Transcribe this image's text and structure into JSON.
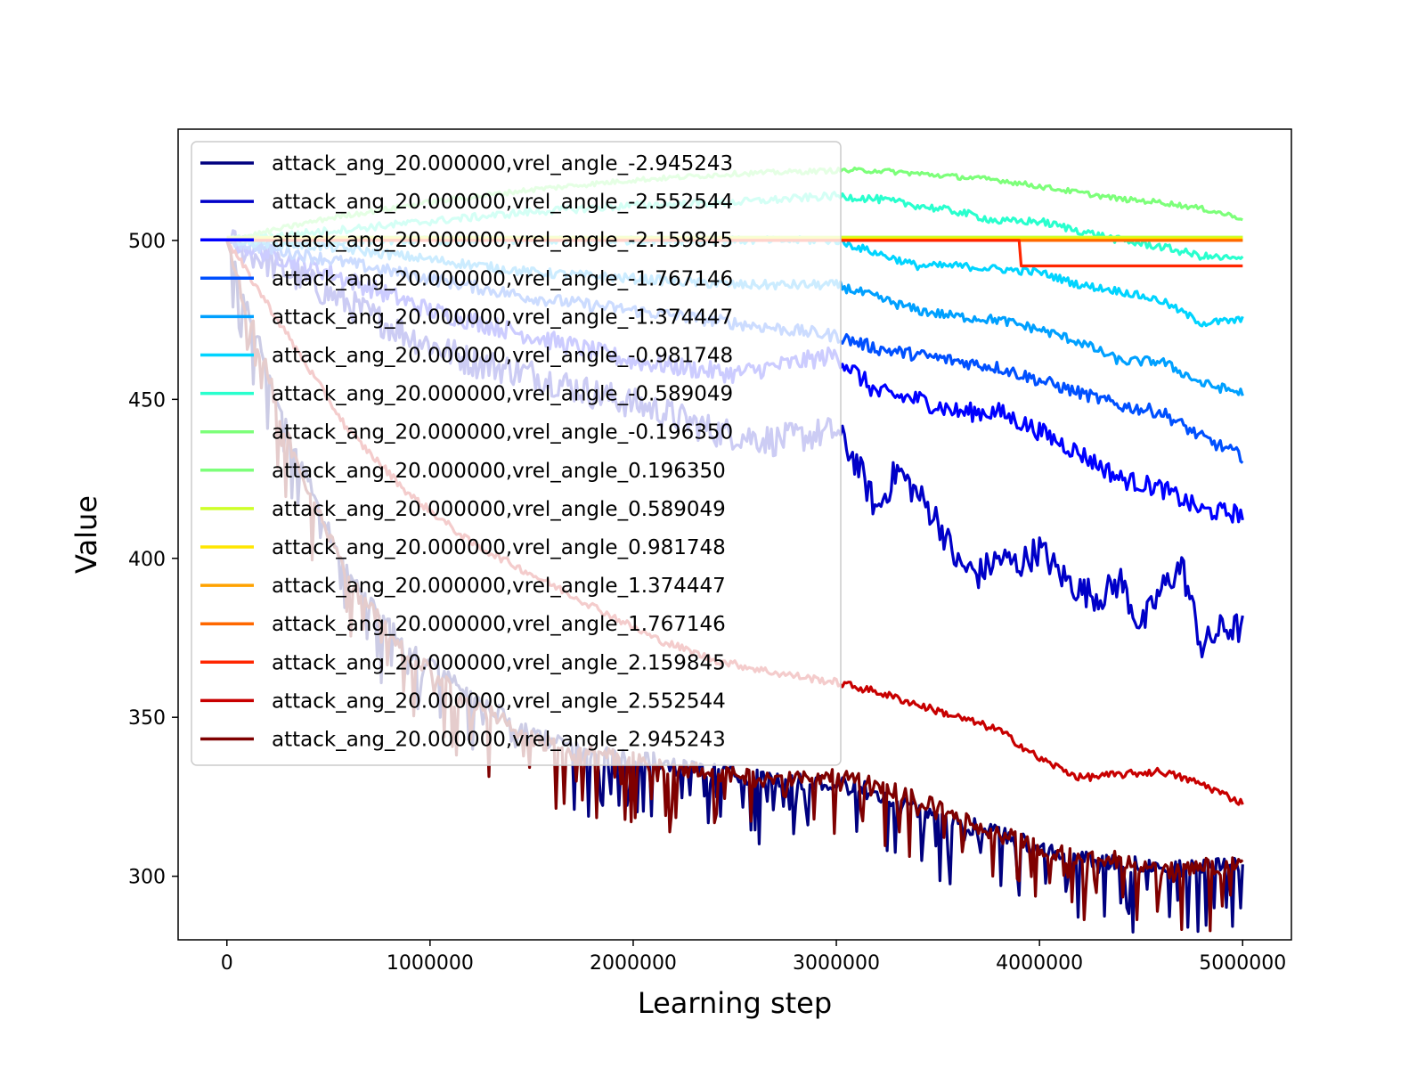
{
  "chart_data": {
    "type": "line",
    "title": "",
    "xlabel": "Learning step",
    "ylabel": "Value",
    "xlim": [
      -240000,
      5240000
    ],
    "ylim": [
      280,
      535
    ],
    "xticks": [
      0,
      1000000,
      2000000,
      3000000,
      4000000,
      5000000
    ],
    "xtick_labels": [
      "0",
      "1000000",
      "2000000",
      "3000000",
      "4000000",
      "5000000"
    ],
    "yticks": [
      300,
      350,
      400,
      450,
      500
    ],
    "ytick_labels": [
      "300",
      "350",
      "400",
      "450",
      "500"
    ],
    "grid": false,
    "legend_position": "upper-left",
    "series": [
      {
        "name": "attack_ang_20.000000,vrel_angle_-2.945243",
        "color": "#00007f",
        "x": [
          0,
          300000,
          600000,
          900000,
          1200000,
          1500000,
          1800000,
          2100000,
          2400000,
          2700000,
          3000000,
          3200000,
          3400000,
          3600000,
          3800000,
          4000000,
          4200000,
          4400000,
          4600000,
          4800000,
          5000000
        ],
        "y": [
          500,
          440,
          395,
          372,
          358,
          345,
          340,
          337,
          334,
          331,
          330,
          327,
          322,
          318,
          314,
          310,
          307,
          305,
          303,
          304,
          304
        ],
        "noise": 10
      },
      {
        "name": "attack_ang_20.000000,vrel_angle_-2.552544",
        "color": "#0000c8",
        "x": [
          0,
          300000,
          600000,
          900000,
          1200000,
          1500000,
          1800000,
          2100000,
          2400000,
          2700000,
          3000000,
          3100000,
          3200000,
          3300000,
          3400000,
          3500000,
          3600000,
          3700000,
          3800000,
          3900000,
          4000000,
          4100000,
          4200000,
          4300000,
          4400000,
          4500000,
          4600000,
          4700000,
          4800000,
          4900000,
          5000000
        ],
        "y": [
          500,
          490,
          480,
          470,
          462,
          458,
          452,
          447,
          440,
          437,
          440,
          430,
          415,
          428,
          420,
          412,
          398,
          395,
          400,
          398,
          403,
          395,
          390,
          388,
          393,
          378,
          390,
          398,
          372,
          378,
          378
        ],
        "noise": 5
      },
      {
        "name": "attack_ang_20.000000,vrel_angle_-2.159845",
        "color": "#0000ff",
        "x": [
          0,
          500000,
          1000000,
          1500000,
          2000000,
          2500000,
          3000000,
          3200000,
          3400000,
          3600000,
          3800000,
          4000000,
          4200000,
          4400000,
          4600000,
          4800000,
          5000000
        ],
        "y": [
          500,
          490,
          478,
          470,
          462,
          458,
          464,
          452,
          450,
          446,
          446,
          440,
          433,
          425,
          422,
          415,
          414
        ],
        "noise": 3
      },
      {
        "name": "attack_ang_20.000000,vrel_angle_-1.767146",
        "color": "#0050ff",
        "x": [
          0,
          500000,
          1000000,
          1500000,
          2000000,
          2500000,
          3000000,
          3200000,
          3400000,
          3600000,
          3800000,
          4000000,
          4200000,
          4400000,
          4600000,
          4800000,
          5000000
        ],
        "y": [
          500,
          494,
          488,
          482,
          478,
          474,
          470,
          466,
          464,
          462,
          460,
          456,
          452,
          448,
          446,
          438,
          432
        ],
        "noise": 2
      },
      {
        "name": "attack_ang_20.000000,vrel_angle_-1.374447",
        "color": "#00a0ff",
        "x": [
          0,
          500000,
          1000000,
          1500000,
          2000000,
          2500000,
          3000000,
          3200000,
          3400000,
          3600000,
          3800000,
          4000000,
          4200000,
          4400000,
          4600000,
          4800000,
          5000000
        ],
        "y": [
          500,
          498,
          494,
          490,
          488,
          486,
          486,
          482,
          478,
          476,
          475,
          472,
          468,
          462,
          462,
          455,
          452
        ],
        "noise": 1.5
      },
      {
        "name": "attack_ang_20.000000,vrel_angle_-0.981748",
        "color": "#00d4ff",
        "x": [
          0,
          500000,
          1000000,
          1500000,
          2000000,
          2500000,
          3000000,
          3200000,
          3400000,
          3600000,
          3800000,
          4000000,
          4200000,
          4400000,
          4600000,
          4800000,
          5000000
        ],
        "y": [
          500,
          500,
          500,
          500,
          500,
          500,
          500,
          496,
          492,
          492,
          491,
          490,
          486,
          484,
          481,
          474,
          475
        ],
        "noise": 1.2
      },
      {
        "name": "attack_ang_20.000000,vrel_angle_-0.589049",
        "color": "#29ffce",
        "x": [
          0,
          500000,
          1000000,
          1500000,
          2000000,
          2500000,
          3000000,
          3200000,
          3400000,
          3600000,
          3800000,
          4000000,
          4200000,
          4400000,
          4600000,
          4800000,
          5000000
        ],
        "y": [
          500,
          503,
          506,
          509,
          511,
          512,
          514,
          513,
          511,
          509,
          506,
          506,
          503,
          500,
          498,
          495,
          494
        ],
        "noise": 1.2
      },
      {
        "name": "attack_ang_20.000000,vrel_angle_-0.196350",
        "color": "#7dff7a",
        "x": [
          0,
          500000,
          1000000,
          1500000,
          2000000,
          2500000,
          3000000,
          3200000,
          3400000,
          3600000,
          3800000,
          4000000,
          4200000,
          4400000,
          4600000,
          4800000,
          5000000
        ],
        "y": [
          500,
          507,
          512,
          516,
          519,
          521,
          522,
          522,
          521,
          520,
          519,
          517,
          515,
          513,
          512,
          510,
          507
        ],
        "noise": 0.8
      },
      {
        "name": "attack_ang_20.000000,vrel_angle_0.196350",
        "color": "#7dff7a",
        "x": [
          0,
          5000000
        ],
        "y": [
          501,
          501
        ],
        "noise": 0
      },
      {
        "name": "attack_ang_20.000000,vrel_angle_0.589049",
        "color": "#ceff29",
        "x": [
          0,
          5000000
        ],
        "y": [
          501,
          501
        ],
        "noise": 0
      },
      {
        "name": "attack_ang_20.000000,vrel_angle_0.981748",
        "color": "#ffe600",
        "x": [
          0,
          5000000
        ],
        "y": [
          500.5,
          500.5
        ],
        "noise": 0
      },
      {
        "name": "attack_ang_20.000000,vrel_angle_1.374447",
        "color": "#ffa200",
        "x": [
          0,
          5000000
        ],
        "y": [
          500,
          500
        ],
        "noise": 0
      },
      {
        "name": "attack_ang_20.000000,vrel_angle_1.767146",
        "color": "#ff6800",
        "x": [
          0,
          5000000
        ],
        "y": [
          500,
          500
        ],
        "noise": 0
      },
      {
        "name": "attack_ang_20.000000,vrel_angle_2.159845",
        "color": "#ff2600",
        "x": [
          0,
          3900000,
          3910000,
          5000000
        ],
        "y": [
          500,
          500,
          492,
          492
        ],
        "noise": 0
      },
      {
        "name": "attack_ang_20.000000,vrel_angle_2.552544",
        "color": "#c80000",
        "x": [
          0,
          300000,
          600000,
          900000,
          1200000,
          1500000,
          1800000,
          2100000,
          2400000,
          2700000,
          3000000,
          3200000,
          3400000,
          3600000,
          3800000,
          4000000,
          4200000,
          4400000,
          4600000,
          4800000,
          5000000
        ],
        "y": [
          500,
          470,
          440,
          420,
          405,
          395,
          385,
          375,
          368,
          364,
          361,
          358,
          354,
          350,
          346,
          337,
          331,
          332,
          333,
          329,
          323
        ],
        "noise": 1.2
      },
      {
        "name": "attack_ang_20.000000,vrel_angle_2.945243",
        "color": "#7f0000",
        "x": [
          0,
          300000,
          600000,
          900000,
          1200000,
          1500000,
          1800000,
          2100000,
          2400000,
          2700000,
          3000000,
          3200000,
          3400000,
          3600000,
          3800000,
          4000000,
          4200000,
          4400000,
          4600000,
          4800000,
          5000000
        ],
        "y": [
          500,
          438,
          393,
          370,
          356,
          344,
          339,
          336,
          333,
          331,
          332,
          330,
          325,
          319,
          314,
          310,
          306,
          306,
          302,
          304,
          304
        ],
        "noise": 10
      }
    ]
  }
}
